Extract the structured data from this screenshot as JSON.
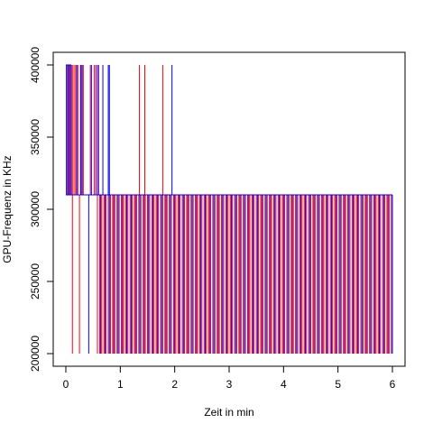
{
  "chart_data": {
    "type": "line",
    "title": "",
    "xlabel": "Zeit in min",
    "ylabel": "GPU-Frequenz in KHz",
    "xlim": [
      0,
      6
    ],
    "ylim": [
      200000,
      400000
    ],
    "x_ticks": [
      0,
      1,
      2,
      3,
      4,
      5,
      6
    ],
    "x_tick_labels": [
      "0",
      "1",
      "2",
      "3",
      "4",
      "5",
      "6"
    ],
    "y_ticks": [
      200000,
      250000,
      300000,
      350000,
      400000
    ],
    "y_tick_labels": [
      "200000",
      "250000",
      "300000",
      "350000",
      "400000"
    ],
    "grid": false,
    "legend": "none",
    "frequency_levels": [
      200000,
      310000,
      400000
    ],
    "series": [
      {
        "color": "#ff0000",
        "baseline": 310000,
        "spikes_to_400000": [
          0.02,
          0.05,
          0.08,
          0.12,
          0.15,
          0.18,
          0.22,
          0.28,
          0.32,
          0.45,
          0.52,
          0.58,
          1.35,
          1.45,
          1.78
        ],
        "dips_to_200000": [
          0.12,
          0.25,
          0.58,
          0.62,
          0.66,
          0.7,
          0.74,
          0.78,
          0.82,
          0.86,
          0.9,
          0.94,
          0.98,
          1.02,
          1.06,
          1.1,
          1.14,
          1.18,
          1.22,
          1.26,
          1.3,
          1.34,
          1.38,
          1.42,
          1.46,
          1.5,
          1.54,
          1.58,
          1.62,
          1.66,
          1.7,
          1.74,
          1.78,
          1.82,
          1.86,
          1.9,
          1.94,
          1.98,
          2.02,
          2.06,
          2.1,
          2.14,
          2.18,
          2.22,
          2.26,
          2.3,
          2.34,
          2.38,
          2.42,
          2.46,
          2.5,
          2.54,
          2.58,
          2.62,
          2.66,
          2.7,
          2.74,
          2.78,
          2.82,
          2.86,
          2.9,
          2.94,
          2.98,
          3.02,
          3.06,
          3.1,
          3.14,
          3.18,
          3.22,
          3.26,
          3.3,
          3.34,
          3.38,
          3.42,
          3.46,
          3.5,
          3.54,
          3.58,
          3.62,
          3.66,
          3.7,
          3.74,
          3.78,
          3.82,
          3.86,
          3.9,
          3.94,
          3.98,
          4.02,
          4.06,
          4.1,
          4.14,
          4.18,
          4.22,
          4.26,
          4.3,
          4.34,
          4.38,
          4.42,
          4.46,
          4.5,
          4.54,
          4.58,
          4.62,
          4.66,
          4.7,
          4.74,
          4.78,
          4.82,
          4.86,
          4.9,
          4.94,
          4.98,
          5.02,
          5.06,
          5.1,
          5.14,
          5.18,
          5.22,
          5.26,
          5.3,
          5.34,
          5.38,
          5.42,
          5.46,
          5.5,
          5.54,
          5.58,
          5.62,
          5.66,
          5.7,
          5.74,
          5.78,
          5.82,
          5.86,
          5.9,
          5.94,
          5.98
        ]
      },
      {
        "color": "#0000ff",
        "baseline": 310000,
        "spikes_to_400000": [
          0.01,
          0.04,
          0.07,
          0.1,
          0.2,
          0.27,
          0.3,
          0.47,
          0.55,
          0.6,
          0.68,
          0.78,
          0.8,
          1.95
        ],
        "dips_to_200000": [
          0.42,
          0.64,
          0.72,
          0.8,
          0.88,
          0.96,
          1.04,
          1.12,
          1.2,
          1.28,
          1.36,
          1.44,
          1.52,
          1.6,
          1.68,
          1.76,
          1.84,
          1.92,
          2.0,
          2.08,
          2.16,
          2.24,
          2.32,
          2.4,
          2.48,
          2.56,
          2.64,
          2.72,
          2.8,
          2.88,
          2.96,
          3.04,
          3.12,
          3.2,
          3.28,
          3.36,
          3.44,
          3.52,
          3.6,
          3.68,
          3.76,
          3.84,
          3.92,
          4.0,
          4.08,
          4.16,
          4.24,
          4.32,
          4.4,
          4.48,
          4.56,
          4.64,
          4.72,
          4.8,
          4.88,
          4.96,
          5.04,
          5.12,
          5.2,
          5.28,
          5.36,
          5.44,
          5.52,
          5.6,
          5.68,
          5.76,
          5.84,
          5.92,
          6.0
        ]
      }
    ]
  }
}
